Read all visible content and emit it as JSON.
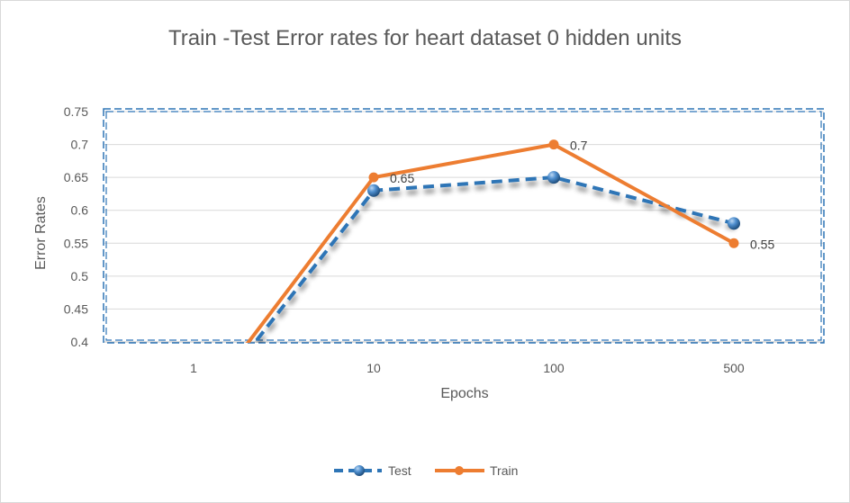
{
  "chart_data": {
    "type": "line",
    "title": "Train -Test Error rates for heart dataset 0 hidden units",
    "xlabel": "Epochs",
    "ylabel": "Error Rates",
    "categories": [
      "1",
      "10",
      "100",
      "500"
    ],
    "ylim": [
      0.4,
      0.75
    ],
    "yticks": [
      "0.4",
      "0.45",
      "0.5",
      "0.55",
      "0.6",
      "0.65",
      "0.7",
      "0.75"
    ],
    "grid": true,
    "legend_position": "bottom",
    "series": [
      {
        "name": "Test",
        "values": [
          0.28,
          0.63,
          0.65,
          0.58
        ],
        "color": "#2E75B6",
        "line_style": "dashed",
        "marker": "sphere",
        "labels": [
          "",
          "",
          "",
          ""
        ]
      },
      {
        "name": "Train",
        "values": [
          0.29,
          0.65,
          0.7,
          0.55
        ],
        "color": "#ED7D31",
        "line_style": "solid",
        "marker": "circle",
        "labels": [
          "",
          "0.65",
          "0.7",
          "0.55"
        ]
      }
    ]
  }
}
